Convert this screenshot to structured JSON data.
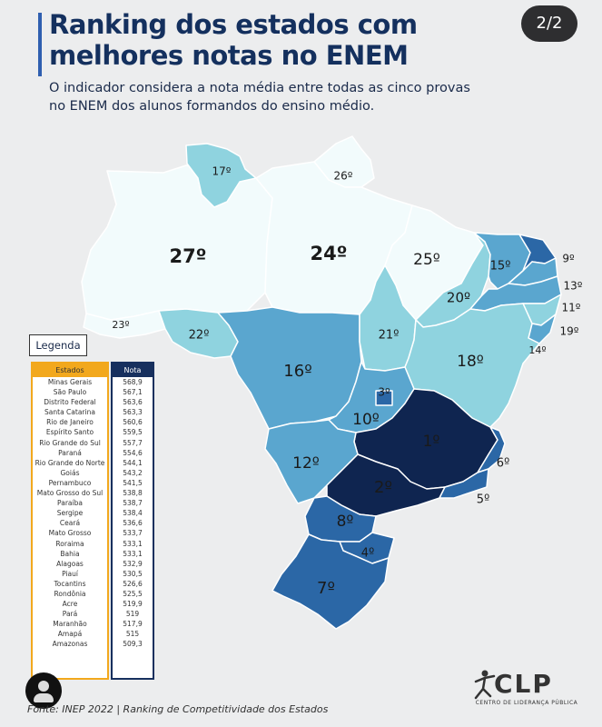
{
  "header": {
    "title": "Ranking dos estados com melhores notas no ENEM",
    "subtitle": "O indicador considera a nota média entre todas as cinco provas no ENEM dos alunos formandos do ensino médio.",
    "page_indicator": "2/2"
  },
  "colors": {
    "rank_1_2": "#0f2550",
    "rank_3_9": "#2b67a6",
    "rank_10_16": "#5aa6cf",
    "rank_17_22": "#8fd3df",
    "rank_23_27": "#f2fbfc",
    "legend_states": "#f2a81d",
    "legend_scores": "#17305e"
  },
  "map": {
    "regions": [
      {
        "state": "Amazonas",
        "rank": "27º"
      },
      {
        "state": "Roraima",
        "rank": "17º"
      },
      {
        "state": "Amapá",
        "rank": "26º"
      },
      {
        "state": "Pará",
        "rank": "24º"
      },
      {
        "state": "Maranhão",
        "rank": "25º"
      },
      {
        "state": "Acre",
        "rank": "23º"
      },
      {
        "state": "Rondônia",
        "rank": "22º"
      },
      {
        "state": "Mato Grosso",
        "rank": "16º"
      },
      {
        "state": "Tocantins",
        "rank": "21º"
      },
      {
        "state": "Piauí",
        "rank": "20º"
      },
      {
        "state": "Ceará",
        "rank": "15º"
      },
      {
        "state": "Rio Grande do Norte",
        "rank": "9º"
      },
      {
        "state": "Paraíba",
        "rank": "13º"
      },
      {
        "state": "Pernambuco",
        "rank": "11º"
      },
      {
        "state": "Alagoas",
        "rank": "19º"
      },
      {
        "state": "Sergipe",
        "rank": "14º"
      },
      {
        "state": "Bahia",
        "rank": "18º"
      },
      {
        "state": "Goiás",
        "rank": "10º"
      },
      {
        "state": "Distrito Federal",
        "rank": "3º"
      },
      {
        "state": "Minas Gerais",
        "rank": "1º"
      },
      {
        "state": "Mato Grosso do Sul",
        "rank": "12º"
      },
      {
        "state": "São Paulo",
        "rank": "2º"
      },
      {
        "state": "Espírito Santo",
        "rank": "6º"
      },
      {
        "state": "Rio de Janeiro",
        "rank": "5º"
      },
      {
        "state": "Paraná",
        "rank": "8º"
      },
      {
        "state": "Santa Catarina",
        "rank": "4º"
      },
      {
        "state": "Rio Grande do Sul",
        "rank": "7º"
      }
    ]
  },
  "legend": {
    "button_label": "Legenda",
    "col_states": "Estados",
    "col_score": "Nota",
    "rows": [
      {
        "state": "Minas Gerais",
        "score": "568,9"
      },
      {
        "state": "São Paulo",
        "score": "567,1"
      },
      {
        "state": "Distrito Federal",
        "score": "563,6"
      },
      {
        "state": "Santa Catarina",
        "score": "563,3"
      },
      {
        "state": "Rio de Janeiro",
        "score": "560,6"
      },
      {
        "state": "Espírito Santo",
        "score": "559,5"
      },
      {
        "state": "Rio Grande do Sul",
        "score": "557,7"
      },
      {
        "state": "Paraná",
        "score": "554,6"
      },
      {
        "state": "Rio Grande do Norte",
        "score": "544,1"
      },
      {
        "state": "Goiás",
        "score": "543,2"
      },
      {
        "state": "Pernambuco",
        "score": "541,5"
      },
      {
        "state": "Mato Grosso do Sul",
        "score": "538,8"
      },
      {
        "state": "Paraíba",
        "score": "538,7"
      },
      {
        "state": "Sergipe",
        "score": "538,4"
      },
      {
        "state": "Ceará",
        "score": "536,6"
      },
      {
        "state": "Mato Grosso",
        "score": "533,7"
      },
      {
        "state": "Roraima",
        "score": "533,1"
      },
      {
        "state": "Bahia",
        "score": "533,1"
      },
      {
        "state": "Alagoas",
        "score": "532,9"
      },
      {
        "state": "Piauí",
        "score": "530,5"
      },
      {
        "state": "Tocantins",
        "score": "526,6"
      },
      {
        "state": "Rondônia",
        "score": "525,5"
      },
      {
        "state": "Acre",
        "score": "519,9"
      },
      {
        "state": "Pará",
        "score": "519"
      },
      {
        "state": "Maranhão",
        "score": "517,9"
      },
      {
        "state": "Amapá",
        "score": "515"
      },
      {
        "state": "Amazonas",
        "score": "509,3"
      }
    ]
  },
  "footer": {
    "source": "Fonte: INEP 2022 | Ranking de Competitividade dos Estados",
    "logo_text": "CLP",
    "logo_subtitle": "CENTRO DE LIDERANÇA PÚBLICA"
  }
}
